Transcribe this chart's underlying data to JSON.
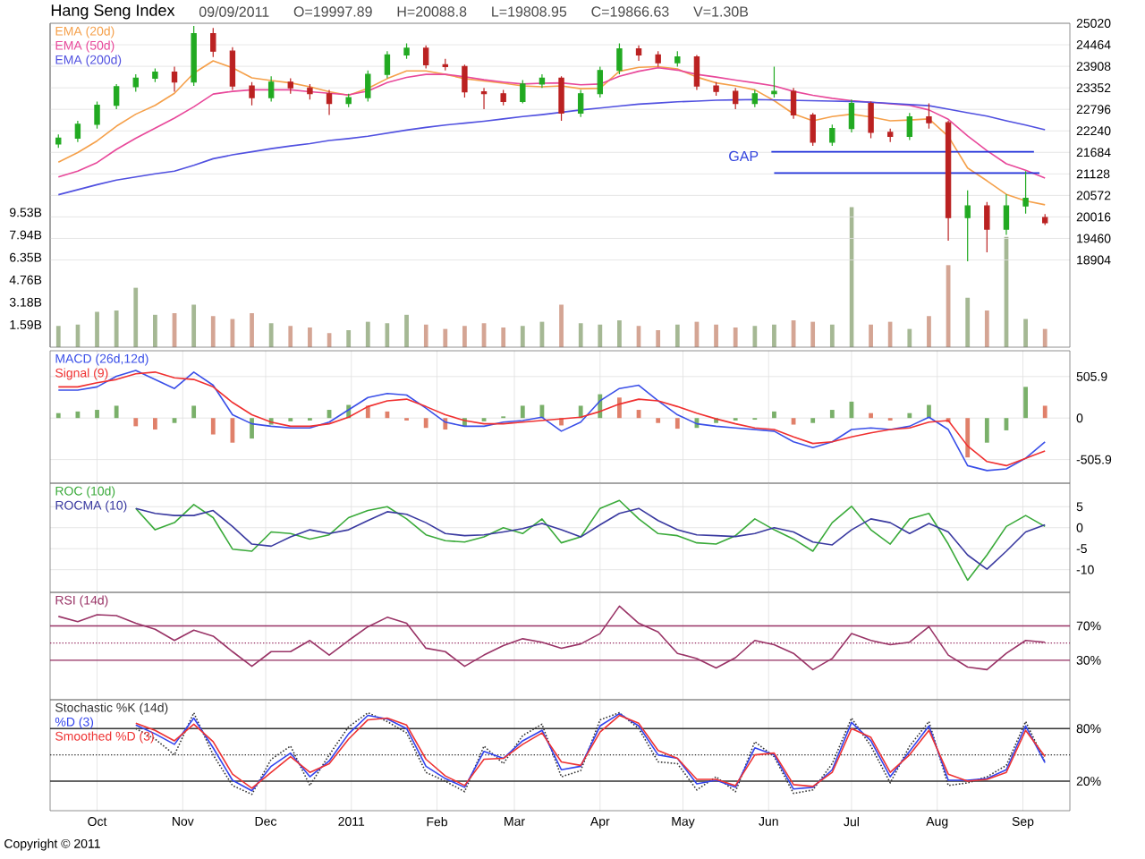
{
  "chart_data": [
    {
      "type": "candlestick",
      "title": "Hang Seng Index",
      "annotations": [
        "09/09/2011",
        "O=19997.89",
        "H=20088.8",
        "L=19808.95",
        "C=19866.63",
        "V=1.30B",
        "GAP"
      ],
      "x": [
        "2010-09-17",
        "2010-09-24",
        "2010-10-01",
        "2010-10-08",
        "2010-10-15",
        "2010-10-22",
        "2010-10-29",
        "2010-11-05",
        "2010-11-12",
        "2010-11-19",
        "2010-11-26",
        "2010-12-03",
        "2010-12-10",
        "2010-12-17",
        "2010-12-24",
        "2010-12-31",
        "2011-01-07",
        "2011-01-14",
        "2011-01-21",
        "2011-01-28",
        "2011-02-04",
        "2011-02-11",
        "2011-02-18",
        "2011-02-25",
        "2011-03-04",
        "2011-03-11",
        "2011-03-18",
        "2011-03-25",
        "2011-04-01",
        "2011-04-08",
        "2011-04-15",
        "2011-04-22",
        "2011-04-29",
        "2011-05-06",
        "2011-05-13",
        "2011-05-20",
        "2011-05-27",
        "2011-06-03",
        "2011-06-10",
        "2011-06-17",
        "2011-06-24",
        "2011-07-01",
        "2011-07-08",
        "2011-07-15",
        "2011-07-22",
        "2011-07-29",
        "2011-08-05",
        "2011-08-12",
        "2011-08-19",
        "2011-08-26",
        "2011-09-02",
        "2011-09-09"
      ],
      "ohlc": [
        [
          21900,
          22150,
          21800,
          22050
        ],
        [
          22050,
          22500,
          21950,
          22410
        ],
        [
          22410,
          23000,
          22300,
          22900
        ],
        [
          22900,
          23450,
          22800,
          23380
        ],
        [
          23380,
          23700,
          23250,
          23600
        ],
        [
          23600,
          23850,
          23500,
          23760
        ],
        [
          23760,
          23900,
          23250,
          23500
        ],
        [
          23500,
          24950,
          23400,
          24750
        ],
        [
          24750,
          24900,
          24150,
          24300
        ],
        [
          24300,
          24400,
          23300,
          23400
        ],
        [
          23400,
          23500,
          22900,
          23100
        ],
        [
          23100,
          23650,
          23000,
          23500
        ],
        [
          23500,
          23600,
          23200,
          23350
        ],
        [
          23350,
          23450,
          23050,
          23200
        ],
        [
          23200,
          23300,
          22650,
          22950
        ],
        [
          22950,
          23200,
          22850,
          23100
        ],
        [
          23100,
          23800,
          23000,
          23700
        ],
        [
          23700,
          24300,
          23600,
          24200
        ],
        [
          24200,
          24500,
          24100,
          24375
        ],
        [
          24375,
          24450,
          23850,
          23950
        ],
        [
          23950,
          24100,
          23800,
          23900
        ],
        [
          23900,
          23950,
          23100,
          23250
        ],
        [
          23250,
          23350,
          22800,
          23200
        ],
        [
          23200,
          23300,
          22900,
          23000
        ],
        [
          23000,
          23550,
          22950,
          23450
        ],
        [
          23450,
          23700,
          23350,
          23600
        ],
        [
          23600,
          23650,
          22500,
          22700
        ],
        [
          22700,
          23300,
          22600,
          23200
        ],
        [
          23200,
          23900,
          23100,
          23800
        ],
        [
          23800,
          24500,
          23700,
          24360
        ],
        [
          24360,
          24450,
          24050,
          24200
        ],
        [
          24200,
          24300,
          23900,
          24000
        ],
        [
          24000,
          24300,
          23900,
          24150
        ],
        [
          24150,
          24200,
          23300,
          23400
        ],
        [
          23400,
          23500,
          23150,
          23260
        ],
        [
          23260,
          23350,
          22800,
          22950
        ],
        [
          22950,
          23300,
          22850,
          23200
        ],
        [
          23200,
          23900,
          23100,
          23260
        ],
        [
          23260,
          23350,
          22550,
          22650
        ],
        [
          22650,
          22700,
          21850,
          21950
        ],
        [
          21950,
          22400,
          21850,
          22300
        ],
        [
          22300,
          23050,
          22200,
          22950
        ],
        [
          22950,
          23000,
          22050,
          22200
        ],
        [
          22200,
          22300,
          21950,
          22100
        ],
        [
          22100,
          22700,
          22000,
          22600
        ],
        [
          22600,
          22950,
          22300,
          22450
        ],
        [
          22450,
          22500,
          19400,
          20000
        ],
        [
          20000,
          20700,
          18870,
          20300
        ],
        [
          20300,
          20400,
          19100,
          19700
        ],
        [
          19700,
          20600,
          19550,
          20300
        ],
        [
          20300,
          21200,
          20100,
          20500
        ],
        [
          19997.89,
          20088.8,
          19808.95,
          19866.63
        ]
      ],
      "colors": [
        "#22aa22",
        "#22aa22",
        "#22aa22",
        "#22aa22",
        "#22aa22",
        "#22aa22",
        "#bb2222",
        "#22aa22",
        "#bb2222",
        "#bb2222",
        "#bb2222",
        "#22aa22",
        "#bb2222",
        "#bb2222",
        "#bb2222",
        "#22aa22",
        "#22aa22",
        "#22aa22",
        "#22aa22",
        "#bb2222",
        "#bb2222",
        "#bb2222",
        "#bb2222",
        "#bb2222",
        "#22aa22",
        "#22aa22",
        "#bb2222",
        "#22aa22",
        "#22aa22",
        "#22aa22",
        "#bb2222",
        "#bb2222",
        "#22aa22",
        "#bb2222",
        "#bb2222",
        "#bb2222",
        "#22aa22",
        "#22aa22",
        "#bb2222",
        "#bb2222",
        "#22aa22",
        "#22aa22",
        "#bb2222",
        "#bb2222",
        "#22aa22",
        "#bb2222",
        "#bb2222",
        "#22aa22",
        "#bb2222",
        "#22aa22",
        "#22aa22",
        "#bb2222"
      ],
      "series": [
        {
          "type": "bar",
          "axis": "y2",
          "values": [
            1.5,
            1.6,
            2.5,
            2.6,
            4.2,
            2.3,
            2.4,
            3.0,
            2.2,
            2.0,
            2.4,
            1.7,
            1.5,
            1.4,
            1.0,
            1.2,
            1.8,
            1.7,
            2.3,
            1.6,
            1.3,
            1.5,
            1.7,
            1.4,
            1.5,
            1.8,
            3.0,
            1.7,
            1.6,
            1.9,
            1.5,
            1.2,
            1.6,
            1.8,
            1.6,
            1.4,
            1.5,
            1.6,
            1.9,
            1.8,
            1.6,
            9.9,
            1.6,
            1.8,
            1.3,
            2.2,
            5.8,
            3.5,
            2.6,
            7.8,
            2.0,
            1.3
          ],
          "colors": [
            "#a5b894",
            "#a5b894",
            "#a5b894",
            "#a5b894",
            "#a5b894",
            "#a5b894",
            "#d4a594",
            "#a5b894",
            "#d4a594",
            "#d4a594",
            "#d4a594",
            "#a5b894",
            "#d4a594",
            "#d4a594",
            "#d4a594",
            "#a5b894",
            "#a5b894",
            "#a5b894",
            "#a5b894",
            "#d4a594",
            "#d4a594",
            "#d4a594",
            "#d4a594",
            "#d4a594",
            "#a5b894",
            "#a5b894",
            "#d4a594",
            "#a5b894",
            "#a5b894",
            "#a5b894",
            "#d4a594",
            "#d4a594",
            "#a5b894",
            "#d4a594",
            "#d4a594",
            "#d4a594",
            "#a5b894",
            "#a5b894",
            "#d4a594",
            "#d4a594",
            "#a5b894",
            "#a5b894",
            "#d4a594",
            "#d4a594",
            "#a5b894",
            "#d4a594",
            "#d4a594",
            "#a5b894",
            "#d4a594",
            "#a5b894",
            "#a5b894",
            "#d4a594"
          ]
        },
        {
          "type": "line",
          "name": "EMA (20d)",
          "color": "#f5a04a",
          "values": [
            21430,
            21680,
            21980,
            22360,
            22670,
            22900,
            23210,
            23730,
            24050,
            23870,
            23610,
            23540,
            23480,
            23380,
            23250,
            23160,
            23340,
            23590,
            23790,
            23790,
            23700,
            23590,
            23530,
            23470,
            23400,
            23380,
            23400,
            23330,
            23340,
            23780,
            23880,
            23900,
            23840,
            23630,
            23480,
            23400,
            23300,
            23020,
            22680,
            22500,
            22610,
            22670,
            22600,
            22500,
            22520,
            22550,
            22100,
            21280,
            20950,
            20600,
            20430,
            20330
          ]
        },
        {
          "type": "line",
          "name": "EMA (50d)",
          "color": "#e8489a",
          "values": [
            21050,
            21200,
            21420,
            21760,
            22050,
            22310,
            22570,
            22860,
            23190,
            23260,
            23300,
            23300,
            23300,
            23250,
            23210,
            23170,
            23270,
            23490,
            23620,
            23700,
            23700,
            23640,
            23560,
            23500,
            23450,
            23470,
            23480,
            23430,
            23450,
            23650,
            23780,
            23870,
            23810,
            23700,
            23630,
            23550,
            23480,
            23400,
            23260,
            23160,
            23080,
            23020,
            22980,
            22940,
            22900,
            22780,
            22540,
            22110,
            21730,
            21390,
            21220,
            21020
          ]
        },
        {
          "type": "line",
          "name": "EMA (200d)",
          "color": "#5050e0",
          "values": [
            20590,
            20720,
            20850,
            20970,
            21050,
            21130,
            21200,
            21350,
            21520,
            21620,
            21700,
            21780,
            21850,
            21910,
            21990,
            22040,
            22100,
            22180,
            22260,
            22330,
            22390,
            22440,
            22490,
            22550,
            22610,
            22660,
            22720,
            22780,
            22830,
            22880,
            22930,
            22960,
            22990,
            23010,
            23030,
            23040,
            23050,
            23040,
            23030,
            23020,
            23010,
            23000,
            22980,
            22950,
            22920,
            22890,
            22800,
            22710,
            22620,
            22500,
            22390,
            22270
          ]
        },
        {
          "type": "line",
          "color": "#2233dd",
          "x": [
            "2011-06-02",
            "2011-09-05"
          ],
          "values": [
            21700,
            21700
          ]
        },
        {
          "type": "line",
          "color": "#2233dd",
          "x": [
            "2011-06-03",
            "2011-09-07"
          ],
          "values": [
            21150,
            21150
          ]
        }
      ],
      "xlim": [
        "2010-09-14",
        "2011-09-18"
      ],
      "xticks": [
        {
          "value": "2010-10-01",
          "label": null
        },
        {
          "value": "2010-11-01",
          "label": null
        },
        {
          "value": "2010-12-01",
          "label": null
        },
        {
          "value": "2011-01-01",
          "label": null
        },
        {
          "value": "2011-02-01",
          "label": null
        },
        {
          "value": "2011-03-01",
          "label": null
        },
        {
          "value": "2011-04-01",
          "label": null
        },
        {
          "value": "2011-05-01",
          "label": null
        },
        {
          "value": "2011-06-01",
          "label": null
        },
        {
          "value": "2011-07-01",
          "label": null
        },
        {
          "value": "2011-08-01",
          "label": null
        },
        {
          "value": "2011-09-01",
          "label": null
        }
      ],
      "ylim": [
        16650,
        25020
      ],
      "yticks": [
        18904,
        19460,
        20016,
        20572,
        21128,
        21684,
        22240,
        22796,
        23352,
        23908,
        24464,
        25020
      ],
      "y2lim": [
        0,
        22.9
      ],
      "y2ticks": [
        {
          "value": 1.59,
          "label": "1.59B"
        },
        {
          "value": 3.18,
          "label": "3.18B"
        },
        {
          "value": 4.76,
          "label": "4.76B"
        },
        {
          "value": 6.35,
          "label": "6.35B"
        },
        {
          "value": 7.94,
          "label": "7.94B"
        },
        {
          "value": 9.53,
          "label": "9.53B"
        }
      ],
      "grid": true,
      "legend": "top left",
      "tick_labels": "y"
    },
    {
      "type": "line",
      "x": [
        "2010-09-17",
        "2010-09-24",
        "2010-10-01",
        "2010-10-08",
        "2010-10-15",
        "2010-10-22",
        "2010-10-29",
        "2010-11-05",
        "2010-11-12",
        "2010-11-19",
        "2010-11-26",
        "2010-12-03",
        "2010-12-10",
        "2010-12-17",
        "2010-12-24",
        "2010-12-31",
        "2011-01-07",
        "2011-01-14",
        "2011-01-21",
        "2011-01-28",
        "2011-02-04",
        "2011-02-11",
        "2011-02-18",
        "2011-02-25",
        "2011-03-04",
        "2011-03-11",
        "2011-03-18",
        "2011-03-25",
        "2011-04-01",
        "2011-04-08",
        "2011-04-15",
        "2011-04-22",
        "2011-04-29",
        "2011-05-06",
        "2011-05-13",
        "2011-05-20",
        "2011-05-27",
        "2011-06-03",
        "2011-06-10",
        "2011-06-17",
        "2011-06-24",
        "2011-07-01",
        "2011-07-08",
        "2011-07-15",
        "2011-07-22",
        "2011-07-29",
        "2011-08-05",
        "2011-08-12",
        "2011-08-19",
        "2011-08-26",
        "2011-09-02",
        "2011-09-09"
      ],
      "series": [
        {
          "type": "bar",
          "values": [
            60,
            80,
            100,
            150,
            -100,
            -140,
            -60,
            150,
            -200,
            -300,
            -250,
            -80,
            -40,
            -30,
            100,
            160,
            150,
            80,
            -30,
            -120,
            -140,
            -100,
            -40,
            20,
            150,
            160,
            -90,
            150,
            290,
            250,
            100,
            -60,
            -130,
            -120,
            -60,
            -30,
            -20,
            80,
            -80,
            -60,
            100,
            200,
            60,
            -30,
            60,
            160,
            -50,
            -480,
            -300,
            -150,
            380,
            150
          ],
          "colors": [
            "#7ab06a",
            "#7ab06a",
            "#7ab06a",
            "#7ab06a",
            "#e0806a",
            "#e0806a",
            "#7ab06a",
            "#7ab06a",
            "#e0806a",
            "#e0806a",
            "#7ab06a",
            "#7ab06a",
            "#7ab06a",
            "#7ab06a",
            "#7ab06a",
            "#7ab06a",
            "#e0806a",
            "#e0806a",
            "#e0806a",
            "#e0806a",
            "#e0806a",
            "#7ab06a",
            "#7ab06a",
            "#7ab06a",
            "#7ab06a",
            "#7ab06a",
            "#e0806a",
            "#7ab06a",
            "#7ab06a",
            "#e0806a",
            "#e0806a",
            "#e0806a",
            "#e0806a",
            "#7ab06a",
            "#7ab06a",
            "#7ab06a",
            "#7ab06a",
            "#7ab06a",
            "#e0806a",
            "#7ab06a",
            "#7ab06a",
            "#7ab06a",
            "#e0806a",
            "#e0806a",
            "#7ab06a",
            "#7ab06a",
            "#e0806a",
            "#e0806a",
            "#7ab06a",
            "#7ab06a",
            "#7ab06a",
            "#e0806a"
          ]
        },
        {
          "type": "line",
          "name": "MACD (26d,12d)",
          "color": "#3a4fe8",
          "values": [
            340,
            340,
            380,
            510,
            580,
            470,
            360,
            560,
            400,
            40,
            -70,
            -100,
            -120,
            -120,
            -50,
            100,
            250,
            300,
            280,
            120,
            -50,
            -100,
            -100,
            -50,
            -30,
            10,
            -160,
            -50,
            210,
            360,
            400,
            210,
            40,
            -70,
            -100,
            -120,
            -140,
            -160,
            -290,
            -360,
            -290,
            -140,
            -120,
            -140,
            -100,
            10,
            -140,
            -580,
            -640,
            -620,
            -490,
            -290
          ]
        },
        {
          "type": "line",
          "name": "Signal (9)",
          "color": "#f03030",
          "values": [
            380,
            380,
            430,
            470,
            540,
            560,
            490,
            470,
            380,
            190,
            40,
            -50,
            -100,
            -100,
            -70,
            10,
            140,
            210,
            230,
            140,
            40,
            -30,
            -70,
            -70,
            -50,
            -30,
            -10,
            10,
            80,
            170,
            230,
            210,
            140,
            60,
            -10,
            -70,
            -120,
            -140,
            -230,
            -310,
            -290,
            -230,
            -180,
            -140,
            -120,
            -50,
            -30,
            -340,
            -530,
            -580,
            -490,
            -400
          ]
        }
      ],
      "xlim": [
        "2010-09-14",
        "2011-09-18"
      ],
      "xticks": [
        {
          "value": "2010-10-01",
          "label": null
        },
        {
          "value": "2010-11-01",
          "label": null
        },
        {
          "value": "2010-12-01",
          "label": null
        },
        {
          "value": "2011-01-01",
          "label": null
        },
        {
          "value": "2011-02-01",
          "label": null
        },
        {
          "value": "2011-03-01",
          "label": null
        },
        {
          "value": "2011-04-01",
          "label": null
        },
        {
          "value": "2011-05-01",
          "label": null
        },
        {
          "value": "2011-06-01",
          "label": null
        },
        {
          "value": "2011-07-01",
          "label": null
        },
        {
          "value": "2011-08-01",
          "label": null
        },
        {
          "value": "2011-09-01",
          "label": null
        }
      ],
      "ylim": [
        -794,
        820
      ],
      "yticks": [
        -505.9,
        0,
        505.9
      ],
      "grid": true,
      "legend": "top left",
      "tick_labels": "y"
    },
    {
      "type": "line",
      "x": [
        "2010-10-15",
        "2010-10-22",
        "2010-10-29",
        "2010-11-05",
        "2010-11-12",
        "2010-11-19",
        "2010-11-26",
        "2010-12-03",
        "2010-12-10",
        "2010-12-17",
        "2010-12-24",
        "2010-12-31",
        "2011-01-07",
        "2011-01-14",
        "2011-01-21",
        "2011-01-28",
        "2011-02-04",
        "2011-02-11",
        "2011-02-18",
        "2011-02-25",
        "2011-03-04",
        "2011-03-11",
        "2011-03-18",
        "2011-03-25",
        "2011-04-01",
        "2011-04-08",
        "2011-04-15",
        "2011-04-22",
        "2011-04-29",
        "2011-05-06",
        "2011-05-13",
        "2011-05-20",
        "2011-05-27",
        "2011-06-03",
        "2011-06-10",
        "2011-06-17",
        "2011-06-24",
        "2011-07-01",
        "2011-07-08",
        "2011-07-15",
        "2011-07-22",
        "2011-07-29",
        "2011-08-05",
        "2011-08-12",
        "2011-08-19",
        "2011-08-26",
        "2011-09-02",
        "2011-09-09"
      ],
      "series": [
        {
          "type": "line",
          "name": "ROC (10d)",
          "color": "#3aaa3a",
          "values": [
            4.6,
            -0.5,
            1.2,
            5.5,
            2.4,
            -5.1,
            -5.6,
            -1.0,
            -1.4,
            -2.7,
            -1.7,
            2.4,
            4.1,
            5.0,
            2.1,
            -1.7,
            -3.1,
            -3.4,
            -2.2,
            0,
            -1.4,
            2.1,
            -3.6,
            -2.2,
            4.6,
            6.5,
            2.1,
            -1.4,
            -1.9,
            -3.6,
            -3.9,
            -1.9,
            2.1,
            -0.5,
            -2.7,
            -5.6,
            1.2,
            5.1,
            -0.5,
            -3.9,
            2.1,
            3.4,
            -3.9,
            -12.5,
            -6.5,
            0.3,
            2.9,
            0.3
          ]
        },
        {
          "type": "line",
          "name": "ROCMA (10)",
          "color": "#3a3aa0",
          "values": [
            4.6,
            3.4,
            2.9,
            2.9,
            4.1,
            0.3,
            -3.9,
            -4.4,
            -2.2,
            -0.5,
            -1.4,
            -0.5,
            1.7,
            3.8,
            3.2,
            1.2,
            -1.4,
            -1.9,
            -1.7,
            -1.0,
            -0.2,
            1.0,
            -0.5,
            -2.2,
            0.7,
            3.4,
            4.6,
            1.7,
            -0.5,
            -1.7,
            -1.9,
            -2.1,
            -1.4,
            0,
            -1.0,
            -3.4,
            -4.1,
            -0.5,
            2.1,
            1.2,
            -1.4,
            1.0,
            -1.0,
            -6.5,
            -9.9,
            -5.6,
            -1.0,
            0.7
          ]
        }
      ],
      "xlim": [
        "2010-09-14",
        "2011-09-18"
      ],
      "xticks": [
        {
          "value": "2010-10-01",
          "label": null
        },
        {
          "value": "2010-11-01",
          "label": null
        },
        {
          "value": "2010-12-01",
          "label": null
        },
        {
          "value": "2011-01-01",
          "label": null
        },
        {
          "value": "2011-02-01",
          "label": null
        },
        {
          "value": "2011-03-01",
          "label": null
        },
        {
          "value": "2011-04-01",
          "label": null
        },
        {
          "value": "2011-05-01",
          "label": null
        },
        {
          "value": "2011-06-01",
          "label": null
        },
        {
          "value": "2011-07-01",
          "label": null
        },
        {
          "value": "2011-08-01",
          "label": null
        },
        {
          "value": "2011-09-01",
          "label": null
        }
      ],
      "ylim": [
        -15.4,
        10.6
      ],
      "yticks": [
        -10,
        -5,
        0,
        5
      ],
      "grid": true,
      "legend": "top left",
      "tick_labels": "y"
    },
    {
      "type": "line",
      "x": [
        "2010-09-17",
        "2010-09-24",
        "2010-10-01",
        "2010-10-08",
        "2010-10-15",
        "2010-10-22",
        "2010-10-29",
        "2010-11-05",
        "2010-11-12",
        "2010-11-19",
        "2010-11-26",
        "2010-12-03",
        "2010-12-10",
        "2010-12-17",
        "2010-12-24",
        "2010-12-31",
        "2011-01-07",
        "2011-01-14",
        "2011-01-21",
        "2011-01-28",
        "2011-02-04",
        "2011-02-11",
        "2011-02-18",
        "2011-02-25",
        "2011-03-04",
        "2011-03-11",
        "2011-03-18",
        "2011-03-25",
        "2011-04-01",
        "2011-04-08",
        "2011-04-15",
        "2011-04-22",
        "2011-04-29",
        "2011-05-06",
        "2011-05-13",
        "2011-05-20",
        "2011-05-27",
        "2011-06-03",
        "2011-06-10",
        "2011-06-17",
        "2011-06-24",
        "2011-07-01",
        "2011-07-08",
        "2011-07-15",
        "2011-07-22",
        "2011-07-29",
        "2011-08-05",
        "2011-08-12",
        "2011-08-19",
        "2011-08-26",
        "2011-09-02",
        "2011-09-09"
      ],
      "series": [
        {
          "type": "line",
          "name": "RSI (14d)",
          "color": "#993366",
          "values": [
            81,
            75,
            83,
            82,
            73,
            66,
            53,
            65,
            58,
            40,
            23,
            40,
            40,
            53,
            36,
            53,
            69,
            80,
            73,
            44,
            40,
            23,
            36,
            47,
            55,
            51,
            44,
            49,
            61,
            93,
            73,
            63,
            38,
            32,
            21,
            33,
            53,
            48,
            38,
            19,
            32,
            61,
            53,
            48,
            51,
            69,
            36,
            22,
            19,
            38,
            53,
            51
          ]
        }
      ],
      "ref_lines": [
        {
          "axis": "y",
          "value": 70,
          "color": "#993366"
        },
        {
          "axis": "y",
          "value": 50,
          "color": "#993366",
          "line_style": "dotted"
        },
        {
          "axis": "y",
          "value": 30,
          "color": "#993366"
        }
      ],
      "xlim": [
        "2010-09-14",
        "2011-09-18"
      ],
      "xticks": [
        {
          "value": "2010-10-01",
          "label": null
        },
        {
          "value": "2010-11-01",
          "label": null
        },
        {
          "value": "2010-12-01",
          "label": null
        },
        {
          "value": "2011-01-01",
          "label": null
        },
        {
          "value": "2011-02-01",
          "label": null
        },
        {
          "value": "2011-03-01",
          "label": null
        },
        {
          "value": "2011-04-01",
          "label": null
        },
        {
          "value": "2011-05-01",
          "label": null
        },
        {
          "value": "2011-06-01",
          "label": null
        },
        {
          "value": "2011-07-01",
          "label": null
        },
        {
          "value": "2011-08-01",
          "label": null
        },
        {
          "value": "2011-09-01",
          "label": null
        }
      ],
      "ylim": [
        -16,
        109
      ],
      "yticks": [
        {
          "value": 30,
          "label": "30%"
        },
        {
          "value": 70,
          "label": "70%"
        }
      ],
      "grid": true,
      "legend": "top left",
      "tick_labels": "y"
    },
    {
      "type": "line",
      "annotations": [
        "Copyright © 2011"
      ],
      "x": [
        "2010-10-15",
        "2010-10-22",
        "2010-10-29",
        "2010-11-05",
        "2010-11-12",
        "2010-11-19",
        "2010-11-26",
        "2010-12-03",
        "2010-12-10",
        "2010-12-17",
        "2010-12-24",
        "2010-12-31",
        "2011-01-07",
        "2011-01-14",
        "2011-01-21",
        "2011-01-28",
        "2011-02-04",
        "2011-02-11",
        "2011-02-18",
        "2011-02-25",
        "2011-03-04",
        "2011-03-11",
        "2011-03-18",
        "2011-03-25",
        "2011-04-01",
        "2011-04-08",
        "2011-04-15",
        "2011-04-22",
        "2011-04-29",
        "2011-05-06",
        "2011-05-13",
        "2011-05-20",
        "2011-05-27",
        "2011-06-03",
        "2011-06-10",
        "2011-06-17",
        "2011-06-24",
        "2011-07-01",
        "2011-07-08",
        "2011-07-15",
        "2011-07-22",
        "2011-07-29",
        "2011-08-05",
        "2011-08-12",
        "2011-08-19",
        "2011-08-26",
        "2011-09-02",
        "2011-09-09"
      ],
      "series": [
        {
          "type": "line",
          "name": "Stochastic %K (14d)",
          "color": "#333333",
          "line_style": "dotted",
          "values": [
            80,
            68,
            50,
            98,
            50,
            15,
            5,
            45,
            60,
            15,
            50,
            82,
            98,
            88,
            75,
            30,
            20,
            8,
            60,
            40,
            72,
            85,
            25,
            32,
            90,
            98,
            80,
            42,
            40,
            10,
            25,
            8,
            65,
            48,
            6,
            10,
            40,
            92,
            60,
            18,
            60,
            88,
            15,
            18,
            25,
            38,
            88,
            42
          ]
        },
        {
          "type": "line",
          "name": "%D (3)",
          "color": "#3344ee",
          "values": [
            84,
            74,
            62,
            92,
            58,
            21,
            9,
            37,
            52,
            25,
            43,
            74,
            95,
            91,
            80,
            37,
            23,
            13,
            54,
            46,
            66,
            78,
            33,
            37,
            83,
            97,
            83,
            50,
            46,
            17,
            21,
            13,
            58,
            50,
            11,
            13,
            33,
            87,
            66,
            25,
            54,
            83,
            21,
            21,
            23,
            33,
            83,
            41
          ]
        },
        {
          "type": "line",
          "name": "Smoothed %D (3)",
          "color": "#ee3333",
          "values": [
            86,
            78,
            66,
            85,
            65,
            28,
            12,
            30,
            48,
            30,
            40,
            68,
            90,
            92,
            84,
            45,
            26,
            15,
            45,
            46,
            62,
            75,
            42,
            38,
            76,
            95,
            86,
            55,
            46,
            22,
            22,
            15,
            50,
            52,
            16,
            14,
            30,
            80,
            70,
            30,
            50,
            78,
            28,
            20,
            22,
            30,
            78,
            48
          ]
        }
      ],
      "ref_lines": [
        {
          "axis": "y",
          "value": 80,
          "color": "#333333"
        },
        {
          "axis": "y",
          "value": 50,
          "color": "#333333",
          "line_style": "dotted"
        },
        {
          "axis": "y",
          "value": 20,
          "color": "#333333"
        }
      ],
      "xlim": [
        "2010-09-14",
        "2011-09-18"
      ],
      "xticks": [
        {
          "value": "2010-10-01",
          "label": "Oct"
        },
        {
          "value": "2010-11-01",
          "label": "Nov"
        },
        {
          "value": "2010-12-01",
          "label": "Dec"
        },
        {
          "value": "2011-01-01",
          "label": "2011"
        },
        {
          "value": "2011-02-01",
          "label": "Feb"
        },
        {
          "value": "2011-03-01",
          "label": "Mar"
        },
        {
          "value": "2011-04-01",
          "label": "Apr"
        },
        {
          "value": "2011-05-01",
          "label": "May"
        },
        {
          "value": "2011-06-01",
          "label": "Jun"
        },
        {
          "value": "2011-07-01",
          "label": "Jul"
        },
        {
          "value": "2011-08-01",
          "label": "Aug"
        },
        {
          "value": "2011-09-01",
          "label": "Sep"
        }
      ],
      "ylim": [
        -13.7,
        112.9
      ],
      "yticks": [
        {
          "value": 20,
          "label": "20%"
        },
        {
          "value": 80,
          "label": "80%"
        }
      ],
      "grid": true,
      "legend": "top left"
    }
  ]
}
